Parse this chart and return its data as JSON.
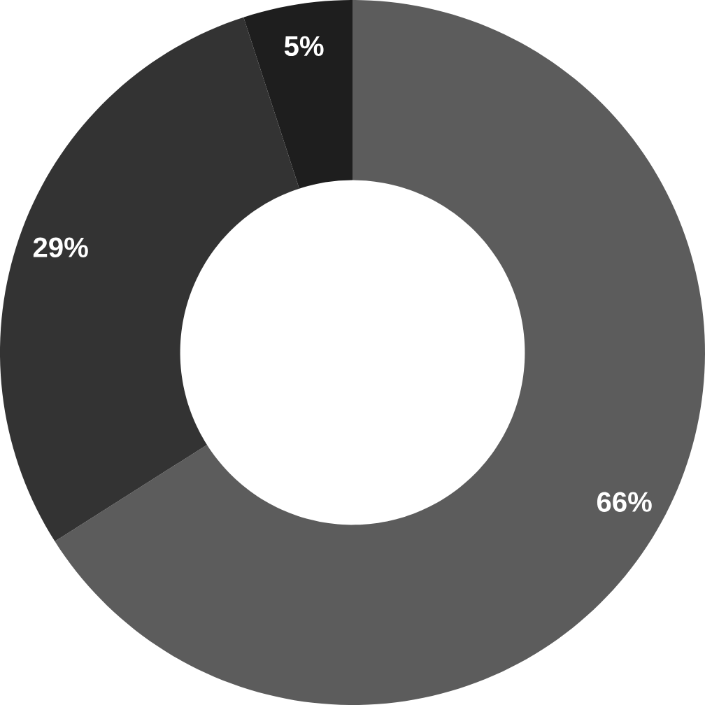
{
  "chart_data": {
    "type": "donut",
    "categories": [
      null,
      null,
      null
    ],
    "values": [
      66,
      29,
      5
    ],
    "colors": [
      "#5c5c5c",
      "#333333",
      "#1e1e1e"
    ],
    "value_labels": [
      "66%",
      "29%",
      "5%"
    ]
  }
}
